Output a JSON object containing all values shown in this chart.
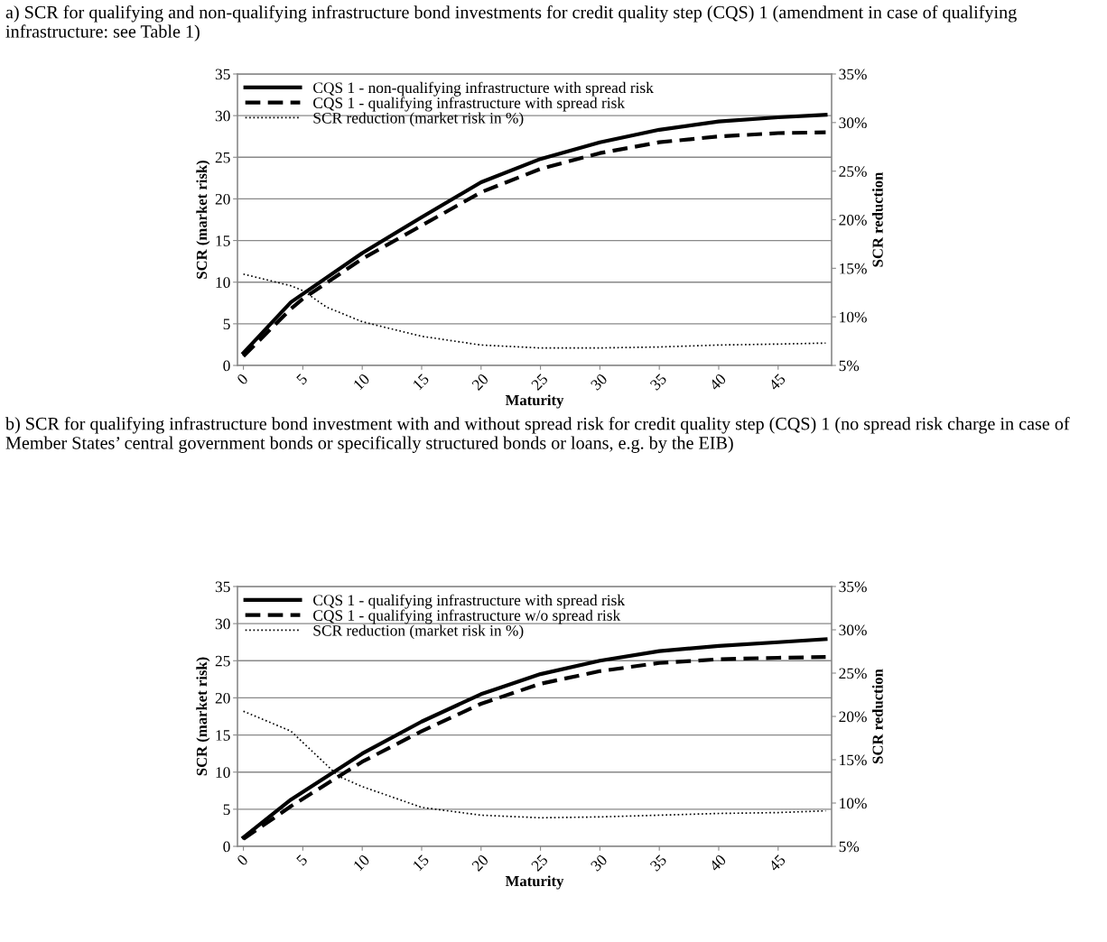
{
  "chart_data": [
    {
      "type": "line",
      "title": "a) SCR for qualifying and non-qualifying infrastructure bond investments for credit quality step (CQS) 1 (amendment in case of qualifying infrastructure: see Table 1)",
      "xlabel": "Maturity",
      "ylabel": "SCR (market risk)",
      "y2label": "SCR reduction",
      "xlim": [
        -0.5,
        49.5
      ],
      "xticks": [
        0,
        5,
        10,
        15,
        20,
        25,
        30,
        35,
        40,
        45
      ],
      "ylim": [
        0,
        35
      ],
      "yticks": [
        0,
        5,
        10,
        15,
        20,
        25,
        30,
        35
      ],
      "y2lim": [
        5,
        35
      ],
      "y2ticks": [
        {
          "value": 5,
          "label": "5%"
        },
        {
          "value": 10,
          "label": "10%"
        },
        {
          "value": 15,
          "label": "15%"
        },
        {
          "value": 20,
          "label": "20%"
        },
        {
          "value": 25,
          "label": "25%"
        },
        {
          "value": 30,
          "label": "30%"
        },
        {
          "value": 35,
          "label": "35%"
        }
      ],
      "grid": "y",
      "legend": "top left",
      "marker": "none",
      "series": [
        {
          "name": "CQS 1 - non-qualifying infrastructure with spread risk",
          "color": "#000000",
          "line_style": "solid",
          "x": [
            0,
            4,
            10,
            15,
            20,
            25,
            30,
            35,
            40,
            45,
            49
          ],
          "values": [
            1.5,
            7.6,
            13.5,
            17.8,
            22,
            24.8,
            26.8,
            28.3,
            29.3,
            29.8,
            30.1
          ]
        },
        {
          "name": "CQS 1 - qualifying infrastructure with spread risk",
          "color": "#000000",
          "line_style": "dashed",
          "x": [
            0,
            4,
            5,
            10,
            15,
            20,
            25,
            30,
            35,
            40,
            45,
            49
          ],
          "values": [
            1.1,
            6.8,
            8,
            12.8,
            16.8,
            20.8,
            23.6,
            25.5,
            26.8,
            27.5,
            27.9,
            28.0
          ]
        },
        {
          "name": "SCR reduction (market risk in %)",
          "color": "#000000",
          "line_style": "dotted",
          "axis": "y2",
          "x": [
            0,
            4,
            5,
            7,
            10,
            15,
            20,
            25,
            30,
            35,
            40,
            45,
            49
          ],
          "values": [
            14.4,
            13.2,
            12.7,
            11,
            9.5,
            8.0,
            7.1,
            6.8,
            6.8,
            6.9,
            7.1,
            7.2,
            7.3
          ]
        }
      ]
    },
    {
      "type": "line",
      "title": "b) SCR for qualifying infrastructure bond investment with and without spread risk for credit quality step (CQS) 1 (no spread risk charge in case of Member States’ central government bonds or specifically structured bonds or loans, e.g. by the EIB)",
      "xlabel": "Maturity",
      "ylabel": "SCR (market risk)",
      "y2label": "SCR reduction",
      "xlim": [
        -0.5,
        49.5
      ],
      "xticks": [
        0,
        5,
        10,
        15,
        20,
        25,
        30,
        35,
        40,
        45
      ],
      "ylim": [
        0,
        35
      ],
      "yticks": [
        0,
        5,
        10,
        15,
        20,
        25,
        30,
        35
      ],
      "y2lim": [
        5,
        35
      ],
      "y2ticks": [
        {
          "value": 5,
          "label": "5%"
        },
        {
          "value": 10,
          "label": "10%"
        },
        {
          "value": 15,
          "label": "15%"
        },
        {
          "value": 20,
          "label": "20%"
        },
        {
          "value": 25,
          "label": "25%"
        },
        {
          "value": 30,
          "label": "30%"
        },
        {
          "value": 35,
          "label": "35%"
        }
      ],
      "grid": "y",
      "legend": "top left",
      "marker": "none",
      "series": [
        {
          "name": "CQS 1 - qualifying infrastructure with spread risk",
          "color": "#000000",
          "line_style": "solid",
          "x": [
            0,
            4,
            10,
            15,
            20,
            25,
            30,
            35,
            40,
            45,
            49
          ],
          "values": [
            1.2,
            6.3,
            12.5,
            16.8,
            20.5,
            23.2,
            25.0,
            26.3,
            27.0,
            27.5,
            27.9
          ]
        },
        {
          "name": "CQS 1 - qualifying infrastructure w/o spread risk",
          "color": "#000000",
          "line_style": "dashed",
          "x": [
            0,
            4,
            10,
            15,
            20,
            25,
            30,
            35,
            40,
            45,
            49
          ],
          "values": [
            1.0,
            5.4,
            11.4,
            15.5,
            19.2,
            21.9,
            23.6,
            24.7,
            25.2,
            25.4,
            25.5
          ]
        },
        {
          "name": "SCR reduction (market risk in %)",
          "color": "#000000",
          "line_style": "dotted",
          "axis": "y2",
          "x": [
            0,
            4,
            5,
            7,
            8,
            10,
            15,
            20,
            25,
            30,
            35,
            40,
            45,
            49
          ],
          "values": [
            20.6,
            18.3,
            17,
            14.4,
            13.1,
            11.9,
            9.5,
            8.6,
            8.3,
            8.4,
            8.6,
            8.8,
            8.9,
            9.1
          ]
        }
      ]
    }
  ]
}
